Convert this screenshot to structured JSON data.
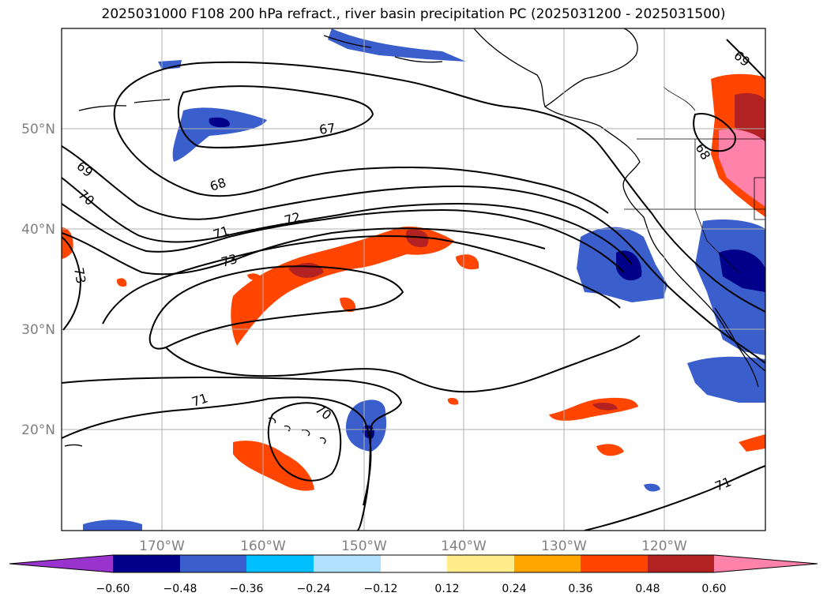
{
  "title": "2025031000 F108 200 hPa refract., river basin precipitation PC (2025031200 - 2025031500)",
  "longitude_ticks": [
    "170°W",
    "160°W",
    "150°W",
    "140°W",
    "130°W",
    "120°W"
  ],
  "latitude_ticks": [
    "50°N",
    "40°N",
    "30°N",
    "20°N"
  ],
  "contour_labels": [
    "67",
    "68",
    "69",
    "70",
    "71",
    "72",
    "73",
    "73",
    "69",
    "68",
    "70",
    "71",
    "71"
  ],
  "colorbar": {
    "colors": [
      "#9a32cd",
      "#00008b",
      "#3a5fcd",
      "#00bfff",
      "#b0e2ff",
      "#ffffff",
      "#ffec8b",
      "#ffa500",
      "#ff4500",
      "#b22222",
      "#ff82ab"
    ],
    "tick_labels": [
      "−0.60",
      "−0.48",
      "−0.36",
      "−0.24",
      "−0.12",
      "0.12",
      "0.24",
      "0.36",
      "0.48",
      "0.60"
    ]
  }
}
